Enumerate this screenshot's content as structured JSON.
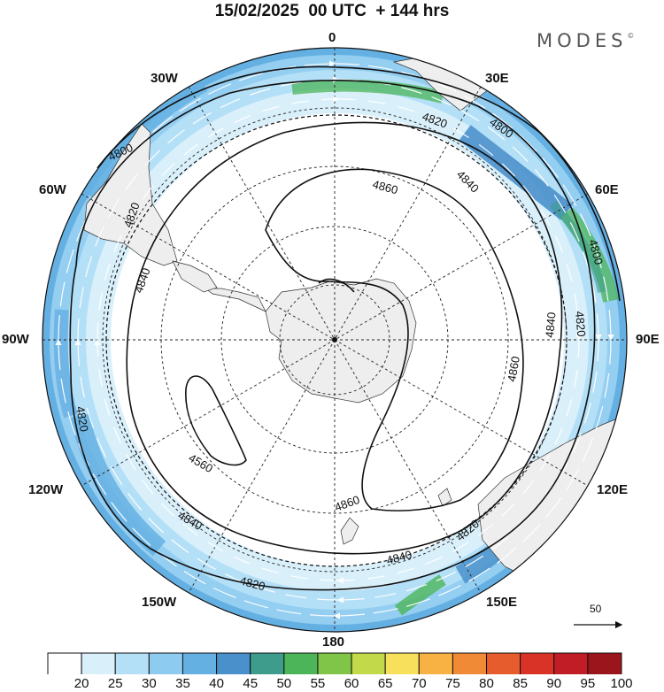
{
  "title": "15/02/2025  00 UTC  + 144 hrs",
  "brand": "MODES",
  "brand_mark": "©",
  "longitude_labels": {
    "n": "0",
    "ne30": "30E",
    "ne60": "60E",
    "e90": "90E",
    "se120": "120E",
    "se150": "150E",
    "s180": "180",
    "sw150": "150W",
    "sw120": "120W",
    "w90": "90W",
    "nw60": "60W",
    "nw30": "30W"
  },
  "contour_labels": [
    "4800",
    "4800",
    "4800",
    "4820",
    "4820",
    "4820",
    "4820",
    "4820",
    "4820",
    "4840",
    "4840",
    "4840",
    "4840",
    "4840",
    "4860",
    "4860",
    "4860",
    "4560"
  ],
  "reference_vector": {
    "label": "50"
  },
  "colorbar": {
    "ticks": [
      "20",
      "25",
      "30",
      "35",
      "40",
      "45",
      "50",
      "55",
      "60",
      "65",
      "70",
      "75",
      "80",
      "85",
      "90",
      "95",
      "100"
    ],
    "colors": [
      "#ffffff",
      "#d9f0fb",
      "#b4e0f7",
      "#8ecbf0",
      "#65b0e3",
      "#4a90cb",
      "#3e9c8c",
      "#4cb55a",
      "#80c547",
      "#c2d949",
      "#f6e05c",
      "#f7b243",
      "#f08a37",
      "#e75c2c",
      "#d93327",
      "#c11d26",
      "#9a151c"
    ]
  }
}
